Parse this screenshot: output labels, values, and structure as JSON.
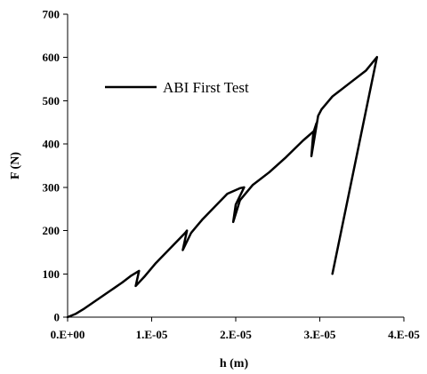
{
  "chart_data": {
    "type": "line",
    "title": "",
    "xlabel": "h (m)",
    "ylabel": "F (N)",
    "xlim": [
      0,
      4e-05
    ],
    "ylim": [
      0,
      700
    ],
    "xticks": [
      0,
      1e-05,
      2e-05,
      3e-05,
      4e-05
    ],
    "xtick_labels": [
      "0.E+00",
      "1.E-05",
      "2.E-05",
      "3.E-05",
      "4.E-05"
    ],
    "yticks": [
      0,
      100,
      200,
      300,
      400,
      500,
      600,
      700
    ],
    "ytick_labels": [
      "0",
      "100",
      "200",
      "300",
      "400",
      "500",
      "600",
      "700"
    ],
    "grid": false,
    "legend_position": "top-left",
    "series": [
      {
        "name": "ABI First Test",
        "color": "#000000",
        "x": [
          0,
          1e-06,
          2e-06,
          3.5e-06,
          5e-06,
          6.5e-06,
          7.5e-06,
          8.5e-06,
          8.1e-06,
          9.2e-06,
          1.05e-05,
          1.2e-05,
          1.3e-05,
          1.4e-05,
          1.42e-05,
          1.37e-05,
          1.47e-05,
          1.6e-05,
          1.75e-05,
          1.9e-05,
          2.05e-05,
          2.1e-05,
          2e-05,
          1.97e-05,
          2.05e-05,
          2.2e-05,
          2.4e-05,
          2.6e-05,
          2.8e-05,
          2.93e-05,
          2.96e-05,
          2.92e-05,
          2.9e-05,
          2.95e-05,
          2.98e-05,
          3.02e-05,
          3.15e-05,
          3.35e-05,
          3.55e-05,
          3.68e-05,
          3.15e-05
        ],
        "y": [
          0,
          8,
          20,
          40,
          60,
          80,
          95,
          107,
          72,
          95,
          125,
          155,
          175,
          195,
          200,
          155,
          195,
          225,
          255,
          285,
          298,
          300,
          260,
          220,
          270,
          305,
          335,
          370,
          408,
          430,
          448,
          420,
          372,
          430,
          465,
          480,
          510,
          540,
          570,
          601,
          100
        ]
      }
    ]
  }
}
